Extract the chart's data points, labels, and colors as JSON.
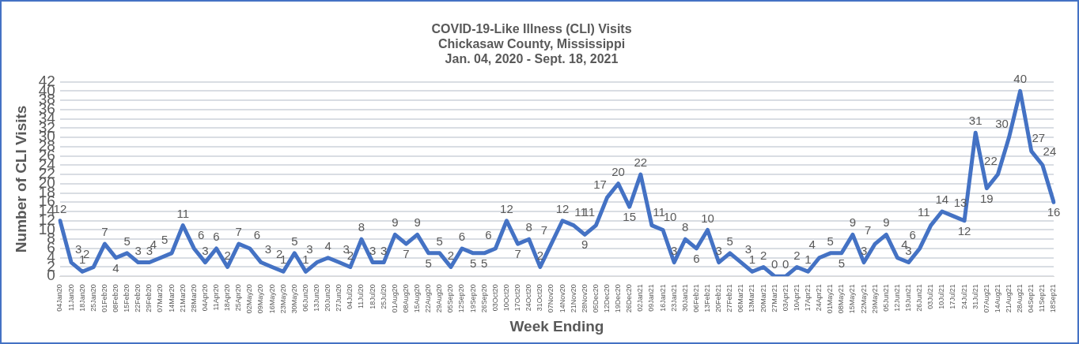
{
  "chart_data": {
    "type": "line",
    "title": "COVID-19-Like Illness (CLI) Visits",
    "subtitle": [
      "Chickasaw County, Mississippi",
      "Jan. 04, 2020 - Sept. 18, 2021"
    ],
    "xlabel": "Week Ending",
    "ylabel": "Number of CLI Visits",
    "categories": [
      "04Jan20",
      "11Jan20",
      "18Jan20",
      "25Jan20",
      "01Feb20",
      "08Feb20",
      "15Feb20",
      "22Feb20",
      "29Feb20",
      "07Mar20",
      "14Mar20",
      "21Mar20",
      "28Mar20",
      "04Apr20",
      "11Apr20",
      "18Apr20",
      "25Apr20",
      "02May20",
      "09May20",
      "16May20",
      "23May20",
      "30May20",
      "06Jun20",
      "13Jun20",
      "20Jun20",
      "27Jun20",
      "04Jul20",
      "11Jul20",
      "18Jul20",
      "25Jul20",
      "01Aug20",
      "08Aug20",
      "15Aug20",
      "22Aug20",
      "29Aug20",
      "05Sep20",
      "12Sep20",
      "19Sep20",
      "26Sep20",
      "03Oct20",
      "10Oct20",
      "17Oct20",
      "24Oct20",
      "31Oct20",
      "07Nov20",
      "14Nov20",
      "21Nov20",
      "28Nov20",
      "05Dec20",
      "12Dec20",
      "19Dec20",
      "26Dec20",
      "02Jan21",
      "09Jan21",
      "16Jan21",
      "23Jan21",
      "30Jan21",
      "06Feb21",
      "13Feb21",
      "20Feb21",
      "27Feb21",
      "06Mar21",
      "13Mar21",
      "20Mar21",
      "27Mar21",
      "03Apr21",
      "10Apr21",
      "17Apr21",
      "24Apr21",
      "01May21",
      "08May21",
      "15May21",
      "22May21",
      "29May21",
      "05Jun21",
      "12Jun21",
      "19Jun21",
      "26Jun21",
      "03Jul21",
      "10Jul21",
      "17Jul21",
      "24Jul21",
      "31Jul21",
      "07Aug21",
      "14Aug21",
      "21Aug21",
      "28Aug21",
      "04Sep21",
      "11Sep21",
      "18Sep21"
    ],
    "series": [
      {
        "color": "#4472c4",
        "values": [
          12,
          3,
          1,
          2,
          7,
          4,
          5,
          3,
          3,
          4,
          5,
          11,
          6,
          3,
          6,
          2,
          7,
          6,
          3,
          2,
          1,
          5,
          1,
          3,
          4,
          3,
          2,
          8,
          3,
          3,
          9,
          7,
          9,
          5,
          5,
          2,
          6,
          5,
          5,
          6,
          12,
          7,
          8,
          2,
          7,
          12,
          11,
          9,
          11,
          17,
          20,
          15,
          22,
          11,
          10,
          3,
          8,
          6,
          10,
          3,
          5,
          3,
          1,
          2,
          0,
          0,
          2,
          1,
          4,
          5,
          5,
          9,
          3,
          7,
          9,
          4,
          3,
          6,
          11,
          14,
          13,
          12,
          31,
          19,
          22,
          30,
          40,
          27,
          24,
          16
        ]
      }
    ],
    "ylim": [
      0,
      42
    ],
    "yticks": [
      0,
      2,
      4,
      6,
      8,
      10,
      12,
      14,
      16,
      18,
      20,
      22,
      24,
      26,
      28,
      30,
      32,
      34,
      36,
      38,
      40,
      42
    ],
    "grid": "y",
    "legend": false,
    "marker": "none",
    "line_style": "solid",
    "data_labels": true
  }
}
